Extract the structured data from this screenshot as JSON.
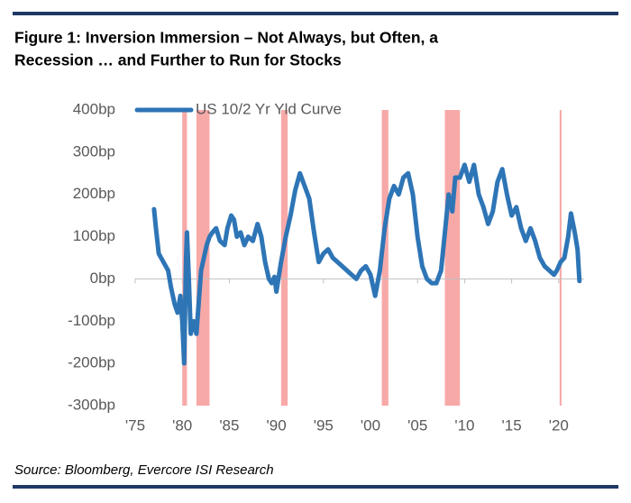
{
  "chart_data": {
    "type": "line",
    "title": "Figure 1: Inversion Immersion – Not Always, but Often, a",
    "title_line2": "Recession … and Further to Run for Stocks",
    "source": "Source: Bloomberg, Evercore ISI Research",
    "xlim": [
      1975,
      2022.7
    ],
    "ylim": [
      -300,
      400
    ],
    "xticks": [
      {
        "value": 1975,
        "label": "'75"
      },
      {
        "value": 1980,
        "label": "'80"
      },
      {
        "value": 1985,
        "label": "'85"
      },
      {
        "value": 1990,
        "label": "'90"
      },
      {
        "value": 1995,
        "label": "'95"
      },
      {
        "value": 2000,
        "label": "'00"
      },
      {
        "value": 2005,
        "label": "'05"
      },
      {
        "value": 2010,
        "label": "'10"
      },
      {
        "value": 2015,
        "label": "'15"
      },
      {
        "value": 2020,
        "label": "'20"
      }
    ],
    "yticks": [
      {
        "value": 400,
        "label": "400bp"
      },
      {
        "value": 300,
        "label": "300bp"
      },
      {
        "value": 200,
        "label": "200bp"
      },
      {
        "value": 100,
        "label": "100bp"
      },
      {
        "value": 0,
        "label": "0bp"
      },
      {
        "value": -100,
        "label": "-100bp"
      },
      {
        "value": -200,
        "label": "-200bp"
      },
      {
        "value": -300,
        "label": "-300bp"
      }
    ],
    "recession_color": "#f7a9a8",
    "recessions": [
      [
        1980.0,
        1980.5
      ],
      [
        1981.5,
        1982.9
      ],
      [
        1990.5,
        1991.2
      ],
      [
        2001.2,
        2001.9
      ],
      [
        2007.9,
        2009.5
      ],
      [
        2020.1,
        2020.3
      ]
    ],
    "x": [
      1977.0,
      1977.2,
      1977.5,
      1978.0,
      1978.5,
      1978.8,
      1979.2,
      1979.5,
      1979.8,
      1980.0,
      1980.2,
      1980.4,
      1980.5,
      1980.7,
      1980.9,
      1981.2,
      1981.5,
      1981.8,
      1982.0,
      1982.3,
      1982.6,
      1982.9,
      1983.2,
      1983.6,
      1984.0,
      1984.5,
      1984.8,
      1985.2,
      1985.5,
      1985.8,
      1986.2,
      1986.6,
      1987.0,
      1987.5,
      1988.0,
      1988.4,
      1988.8,
      1989.2,
      1989.5,
      1989.8,
      1990.0,
      1990.5,
      1991.0,
      1991.5,
      1992.0,
      1992.5,
      1993.0,
      1993.5,
      1994.0,
      1994.5,
      1995.0,
      1995.5,
      1996.0,
      1996.5,
      1997.0,
      1997.5,
      1998.0,
      1998.5,
      1999.0,
      1999.5,
      2000.0,
      2000.5,
      2001.0,
      2001.5,
      2002.0,
      2002.5,
      2003.0,
      2003.5,
      2004.0,
      2004.5,
      2005.0,
      2005.5,
      2006.0,
      2006.5,
      2007.0,
      2007.5,
      2008.0,
      2008.3,
      2008.7,
      2009.0,
      2009.5,
      2010.0,
      2010.5,
      2011.0,
      2011.5,
      2012.0,
      2012.5,
      2013.0,
      2013.5,
      2014.0,
      2014.5,
      2015.0,
      2015.5,
      2016.0,
      2016.5,
      2017.0,
      2017.5,
      2018.0,
      2018.5,
      2019.0,
      2019.5,
      2019.8,
      2020.2,
      2020.6,
      2021.0,
      2021.3,
      2021.7,
      2022.0,
      2022.2
    ],
    "series": [
      {
        "name": "US 10/2 Yr Yld Curve",
        "color": "#2e75b6",
        "values": [
          165,
          120,
          60,
          40,
          20,
          -20,
          -60,
          -80,
          -40,
          -100,
          -200,
          50,
          110,
          0,
          -130,
          -100,
          -130,
          -40,
          20,
          50,
          80,
          100,
          110,
          120,
          90,
          80,
          120,
          150,
          140,
          100,
          110,
          80,
          100,
          90,
          130,
          100,
          40,
          0,
          -10,
          5,
          -30,
          40,
          100,
          150,
          210,
          250,
          220,
          190,
          110,
          40,
          60,
          70,
          50,
          40,
          30,
          20,
          10,
          0,
          20,
          30,
          10,
          -40,
          20,
          120,
          190,
          220,
          200,
          240,
          250,
          200,
          100,
          30,
          0,
          -10,
          -10,
          20,
          130,
          200,
          160,
          240,
          240,
          270,
          230,
          270,
          200,
          170,
          130,
          160,
          230,
          260,
          200,
          150,
          170,
          120,
          90,
          120,
          90,
          50,
          30,
          20,
          10,
          20,
          40,
          50,
          100,
          155,
          110,
          70,
          -5
        ]
      }
    ]
  }
}
